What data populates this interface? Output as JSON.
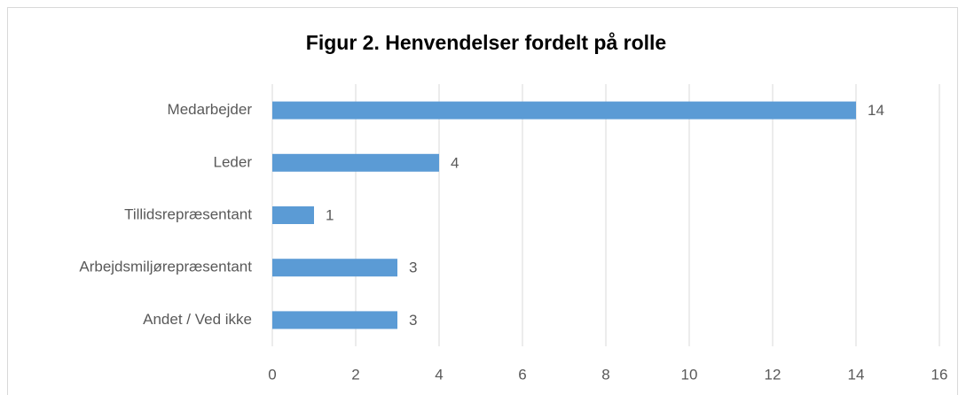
{
  "chart_data": {
    "type": "bar",
    "orientation": "horizontal",
    "title": "Figur 2. Henvendelser fordelt på rolle",
    "categories": [
      "Medarbejder",
      "Leder",
      "Tillidsrepræsentant",
      "Arbejdsmiljørepræsentant",
      "Andet / Ved ikke"
    ],
    "values": [
      14,
      4,
      1,
      3,
      3
    ],
    "color": "#5b9bd5",
    "xlim": [
      0,
      16
    ],
    "xticks": [
      0,
      2,
      4,
      6,
      8,
      10,
      12,
      14,
      16
    ],
    "grid": true
  }
}
